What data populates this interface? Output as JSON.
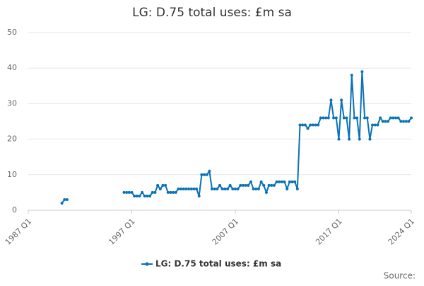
{
  "chart_data": {
    "type": "line",
    "title": "LG: D.75 total uses: £m sa",
    "source": "Source:",
    "categories": [
      "1987 Q1",
      null,
      null,
      null,
      null,
      null,
      null,
      null,
      null,
      null,
      null,
      null,
      null,
      null,
      null,
      null,
      null,
      null,
      null,
      null,
      null,
      null,
      null,
      null,
      null,
      null,
      null,
      null,
      null,
      null,
      null,
      null,
      null,
      null,
      null,
      null,
      null,
      null,
      null,
      null,
      "1997 Q1",
      null,
      null,
      null,
      null,
      null,
      null,
      null,
      null,
      null,
      null,
      null,
      null,
      null,
      null,
      null,
      null,
      null,
      null,
      null,
      null,
      null,
      null,
      null,
      null,
      null,
      null,
      null,
      null,
      null,
      null,
      null,
      null,
      null,
      null,
      null,
      null,
      null,
      null,
      null,
      "2007 Q1",
      null,
      null,
      null,
      null,
      null,
      null,
      null,
      null,
      null,
      null,
      null,
      null,
      null,
      null,
      null,
      null,
      null,
      null,
      null,
      null,
      null,
      null,
      null,
      null,
      null,
      null,
      null,
      null,
      null,
      null,
      null,
      null,
      null,
      null,
      null,
      null,
      null,
      null,
      null,
      "2017 Q1",
      null,
      null,
      null,
      null,
      null,
      null,
      null,
      null,
      null,
      null,
      null,
      null,
      null,
      null,
      null,
      null,
      null,
      null,
      null,
      null,
      null,
      null,
      null,
      null,
      null,
      null,
      null,
      "2024 Q1"
    ],
    "series": [
      {
        "name": "LG: D.75 total uses: £m sa",
        "color": "#0a72b5",
        "values": [
          null,
          null,
          null,
          null,
          null,
          null,
          null,
          null,
          null,
          null,
          null,
          null,
          null,
          2,
          3,
          3,
          null,
          null,
          null,
          null,
          null,
          null,
          null,
          null,
          null,
          null,
          null,
          null,
          null,
          null,
          null,
          null,
          null,
          null,
          null,
          null,
          null,
          5,
          5,
          5,
          5,
          4,
          4,
          4,
          5,
          4,
          4,
          4,
          5,
          5,
          7,
          6,
          7,
          7,
          5,
          5,
          5,
          5,
          6,
          6,
          6,
          6,
          6,
          6,
          6,
          6,
          4,
          10,
          10,
          10,
          11,
          6,
          6,
          6,
          7,
          6,
          6,
          6,
          7,
          6,
          6,
          6,
          7,
          7,
          7,
          7,
          8,
          6,
          6,
          6,
          8,
          7,
          5,
          7,
          7,
          7,
          8,
          8,
          8,
          8,
          6,
          8,
          8,
          8,
          6,
          24,
          24,
          24,
          23,
          24,
          24,
          24,
          24,
          26,
          26,
          26,
          26,
          31,
          26,
          26,
          20,
          31,
          26,
          26,
          20,
          38,
          26,
          26,
          20,
          39,
          26,
          26,
          20,
          24,
          24,
          24,
          26,
          25,
          25,
          25,
          26,
          26,
          26,
          26,
          25,
          25,
          25,
          25,
          26
        ]
      }
    ],
    "ylim": [
      0,
      50
    ],
    "yticks": [
      0,
      10,
      20,
      30,
      40,
      50
    ],
    "grid": true,
    "legend": "bottom"
  }
}
